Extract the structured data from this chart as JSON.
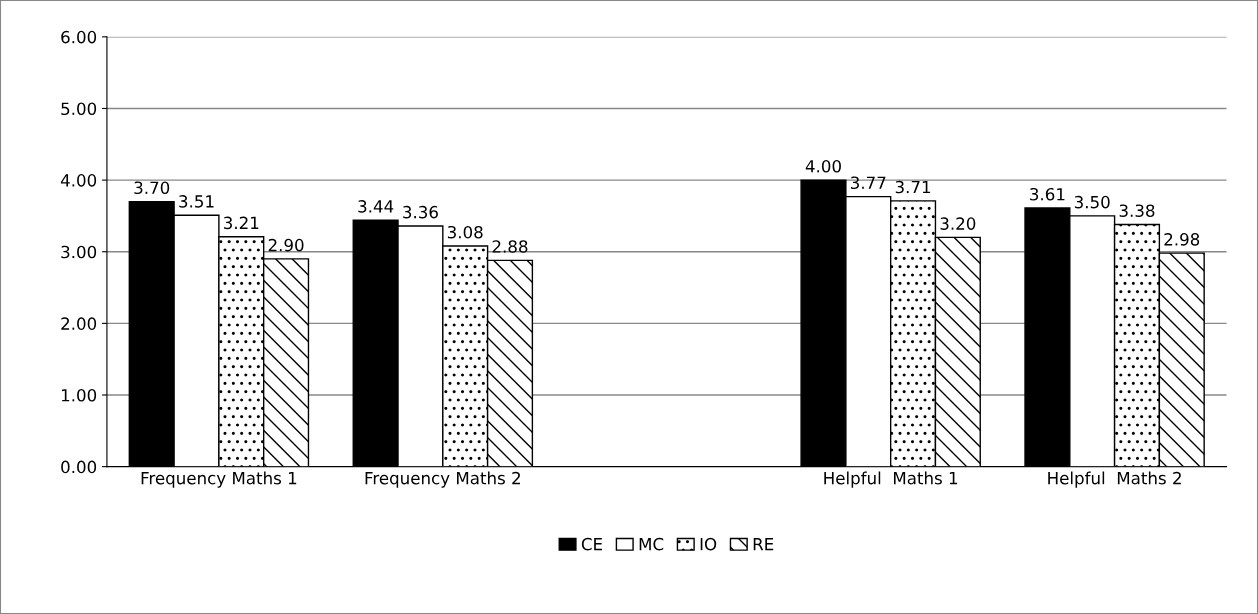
{
  "chart_data": {
    "type": "bar",
    "categories": [
      "Frequency Maths 1",
      "Frequency Maths 2",
      null,
      "Helpful  Maths 1",
      "Helpful  Maths 2"
    ],
    "series": [
      {
        "name": "CE",
        "color": "#000000",
        "values": [
          3.7,
          3.44,
          null,
          4.0,
          3.61
        ],
        "value_labels": [
          "3.70",
          "3.44",
          null,
          "4.00",
          "3.61"
        ]
      },
      {
        "name": "MC",
        "color": "#ffffff",
        "values": [
          3.51,
          3.36,
          null,
          3.77,
          3.5
        ],
        "value_labels": [
          "3.51",
          "3.36",
          null,
          "3.77",
          "3.50"
        ]
      },
      {
        "name": "IO",
        "color": "#ffffff",
        "values": [
          3.21,
          3.08,
          null,
          3.71,
          3.38
        ],
        "value_labels": [
          "3.21",
          "3.08",
          null,
          "3.71",
          "3.38"
        ]
      },
      {
        "name": "RE",
        "color": "#ffffff",
        "values": [
          2.9,
          2.88,
          null,
          3.2,
          2.98
        ],
        "value_labels": [
          "2.90",
          "2.88",
          null,
          "3.20",
          "2.98"
        ]
      }
    ],
    "ylim": [
      0,
      6
    ],
    "yticks": [
      {
        "value": 0,
        "label": "0.00"
      },
      {
        "value": 1,
        "label": "1.00"
      },
      {
        "value": 2,
        "label": "2.00"
      },
      {
        "value": 3,
        "label": "3.00"
      },
      {
        "value": 4,
        "label": "4.00"
      },
      {
        "value": 5,
        "label": "5.00"
      },
      {
        "value": 6,
        "label": "6.00"
      }
    ],
    "grid": "y",
    "legend": "bottom"
  }
}
